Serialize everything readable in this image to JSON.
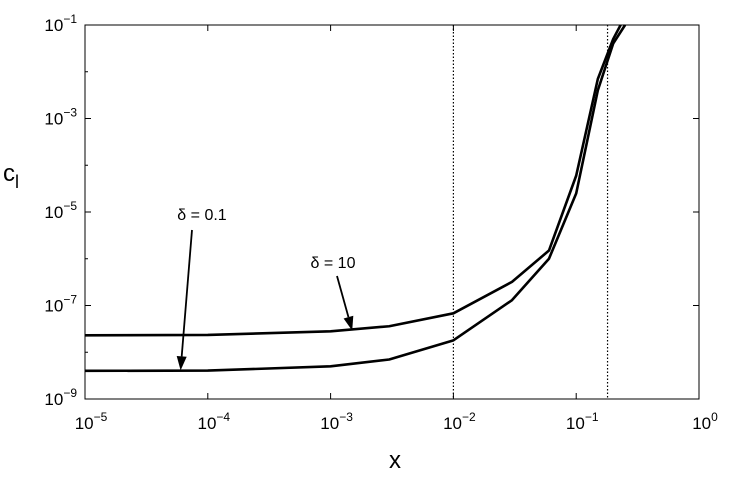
{
  "chart_data": {
    "type": "line",
    "title": "",
    "xlabel": "x",
    "ylabel": "c_l",
    "xscale": "log",
    "yscale": "log",
    "xlim": [
      1e-05,
      1
    ],
    "ylim": [
      1e-09,
      0.1
    ],
    "grid": false,
    "x_ticks": [
      {
        "base": "10",
        "exp": "−5",
        "value": 1e-05
      },
      {
        "base": "10",
        "exp": "−4",
        "value": 0.0001
      },
      {
        "base": "10",
        "exp": "−3",
        "value": 0.001
      },
      {
        "base": "10",
        "exp": "−2",
        "value": 0.01
      },
      {
        "base": "10",
        "exp": "−1",
        "value": 0.1
      },
      {
        "base": "10",
        "exp": "0",
        "value": 1
      }
    ],
    "y_ticks": [
      {
        "base": "10",
        "exp": "−9",
        "value": 1e-09
      },
      {
        "base": "10",
        "exp": "−7",
        "value": 1e-07
      },
      {
        "base": "10",
        "exp": "−5",
        "value": 1e-05
      },
      {
        "base": "10",
        "exp": "−3",
        "value": 0.001
      },
      {
        "base": "10",
        "exp": "−1",
        "value": 0.1
      }
    ],
    "reference_lines": [
      {
        "orientation": "vertical",
        "x": 0.01,
        "style": "dotted"
      },
      {
        "orientation": "vertical",
        "x": 0.18,
        "style": "dotted"
      }
    ],
    "series": [
      {
        "name": "δ = 10",
        "x": [
          1e-05,
          0.0001,
          0.001,
          0.003,
          0.01,
          0.03,
          0.06,
          0.1,
          0.15,
          0.2,
          0.23
        ],
        "y": [
          2.3e-08,
          2.35e-08,
          2.8e-08,
          3.6e-08,
          6.8e-08,
          3.2e-07,
          1.5e-06,
          6e-05,
          0.007,
          0.05,
          0.1
        ]
      },
      {
        "name": "δ = 0.1",
        "x": [
          1e-05,
          0.0001,
          0.001,
          0.003,
          0.01,
          0.03,
          0.06,
          0.1,
          0.15,
          0.2,
          0.25
        ],
        "y": [
          4e-09,
          4.05e-09,
          5e-09,
          7e-09,
          1.8e-08,
          1.3e-07,
          1e-06,
          2.5e-05,
          0.004,
          0.04,
          0.1
        ]
      }
    ],
    "annotations": [
      {
        "text": "δ = 0.1",
        "arrow_to": {
          "x": 6e-05,
          "y": 4.1e-09
        }
      },
      {
        "text": "δ = 10",
        "arrow_to": {
          "x": 0.0015,
          "y": 2.9e-08
        }
      }
    ]
  }
}
